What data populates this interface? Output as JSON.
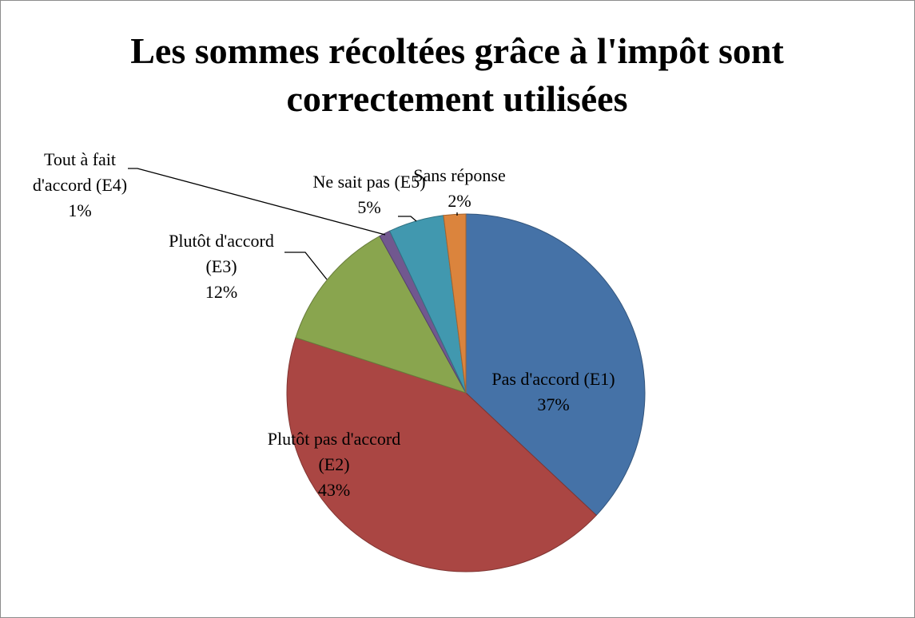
{
  "chart_data": {
    "type": "pie",
    "title": "Les sommes récoltées grâce à l'impôt sont correctement utilisées",
    "categories": [
      "Pas d'accord (E1)",
      "Plutôt pas d'accord (E2)",
      "Plutôt d'accord (E3)",
      "Tout à fait d'accord (E4)",
      "Ne sait pas (E5)",
      "Sans réponse"
    ],
    "values": [
      37,
      43,
      12,
      1,
      5,
      2
    ],
    "value_labels": [
      "37%",
      "43%",
      "12%",
      "1%",
      "5%",
      "2%"
    ],
    "colors": [
      "#4572a7",
      "#aa4643",
      "#89a54e",
      "#71588f",
      "#4198af",
      "#db843d"
    ]
  }
}
